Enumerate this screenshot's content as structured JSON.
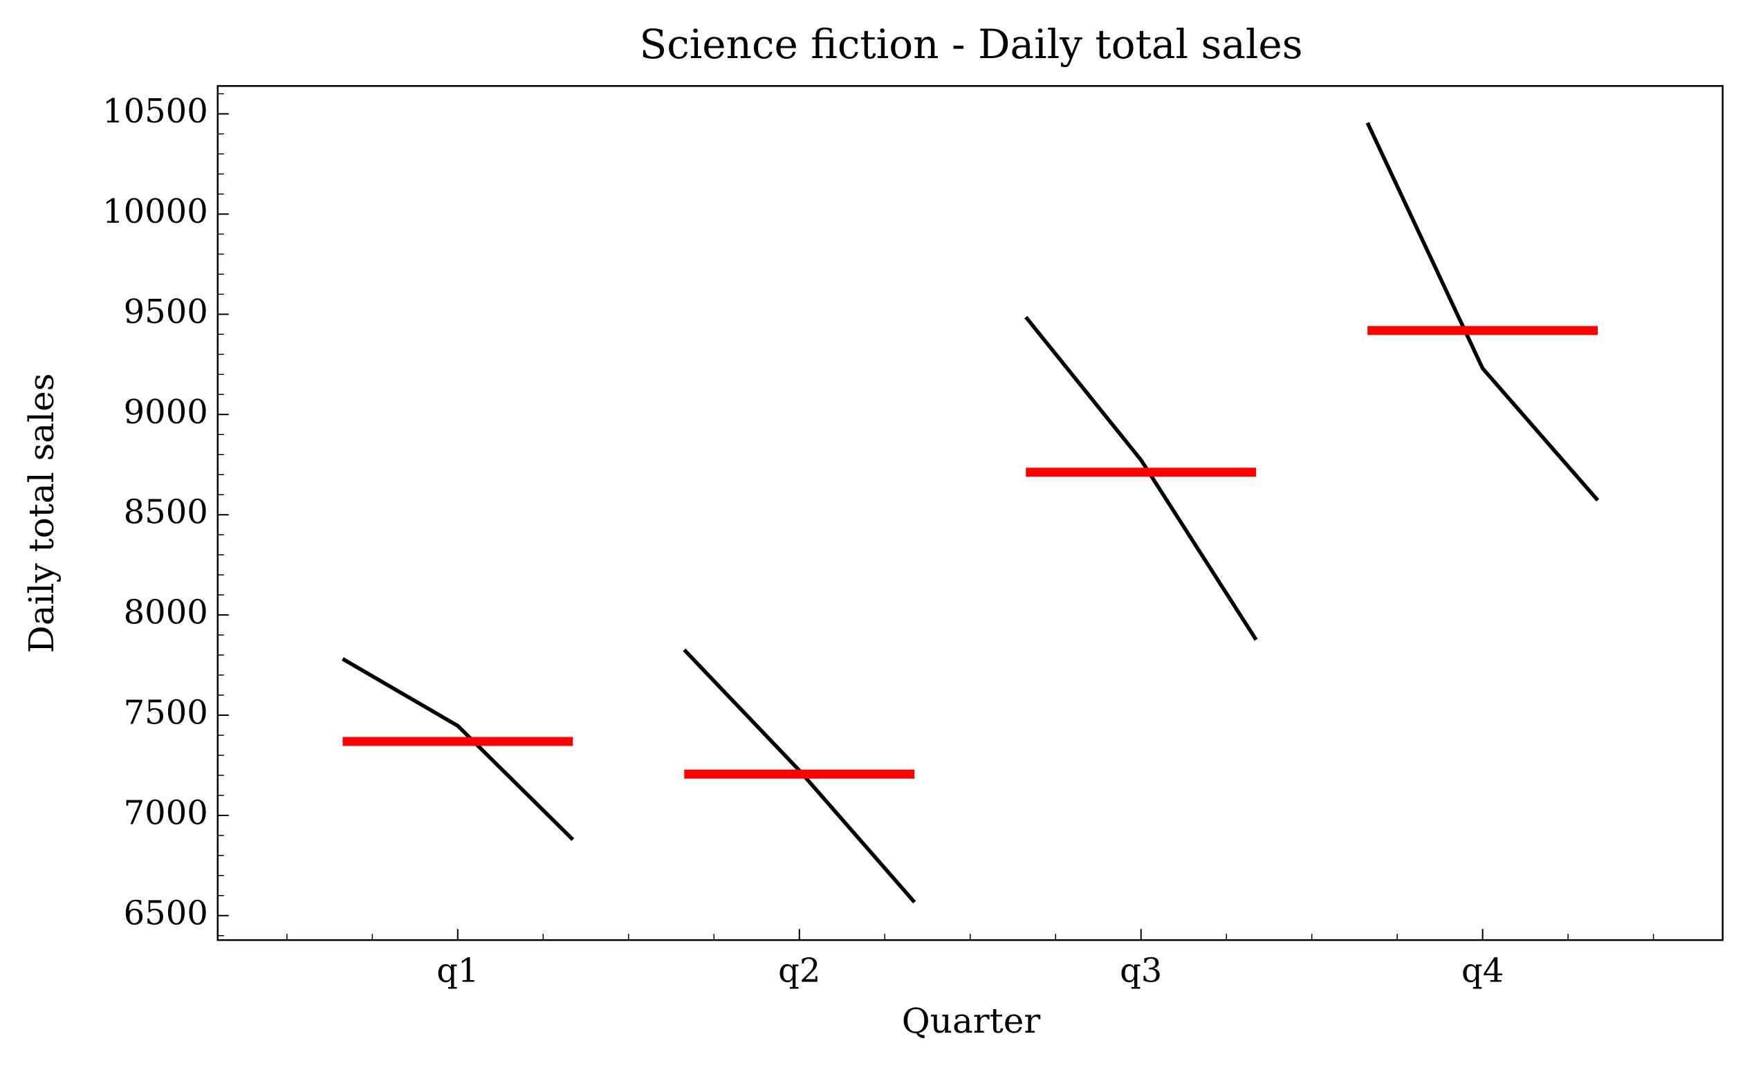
{
  "chart_data": {
    "type": "quarter_plot",
    "title": "Science fiction - Daily total sales",
    "xlabel": "Quarter",
    "ylabel": "Daily total sales",
    "categories": [
      "q1",
      "q2",
      "q3",
      "q4"
    ],
    "values": [
      [
        7781,
        7447,
        6879
      ],
      [
        7826,
        7224,
        6567
      ],
      [
        9486,
        8773,
        7876
      ],
      [
        10455,
        9230,
        8572
      ]
    ],
    "means": [
      7369,
      7206,
      8712,
      9419
    ],
    "line_color": "#000000",
    "mean_color": "#ff0000",
    "ylim": [
      6378,
      10639
    ],
    "yticks": [
      6500,
      7000,
      7500,
      8000,
      8500,
      9000,
      9500,
      10000,
      10500
    ]
  }
}
